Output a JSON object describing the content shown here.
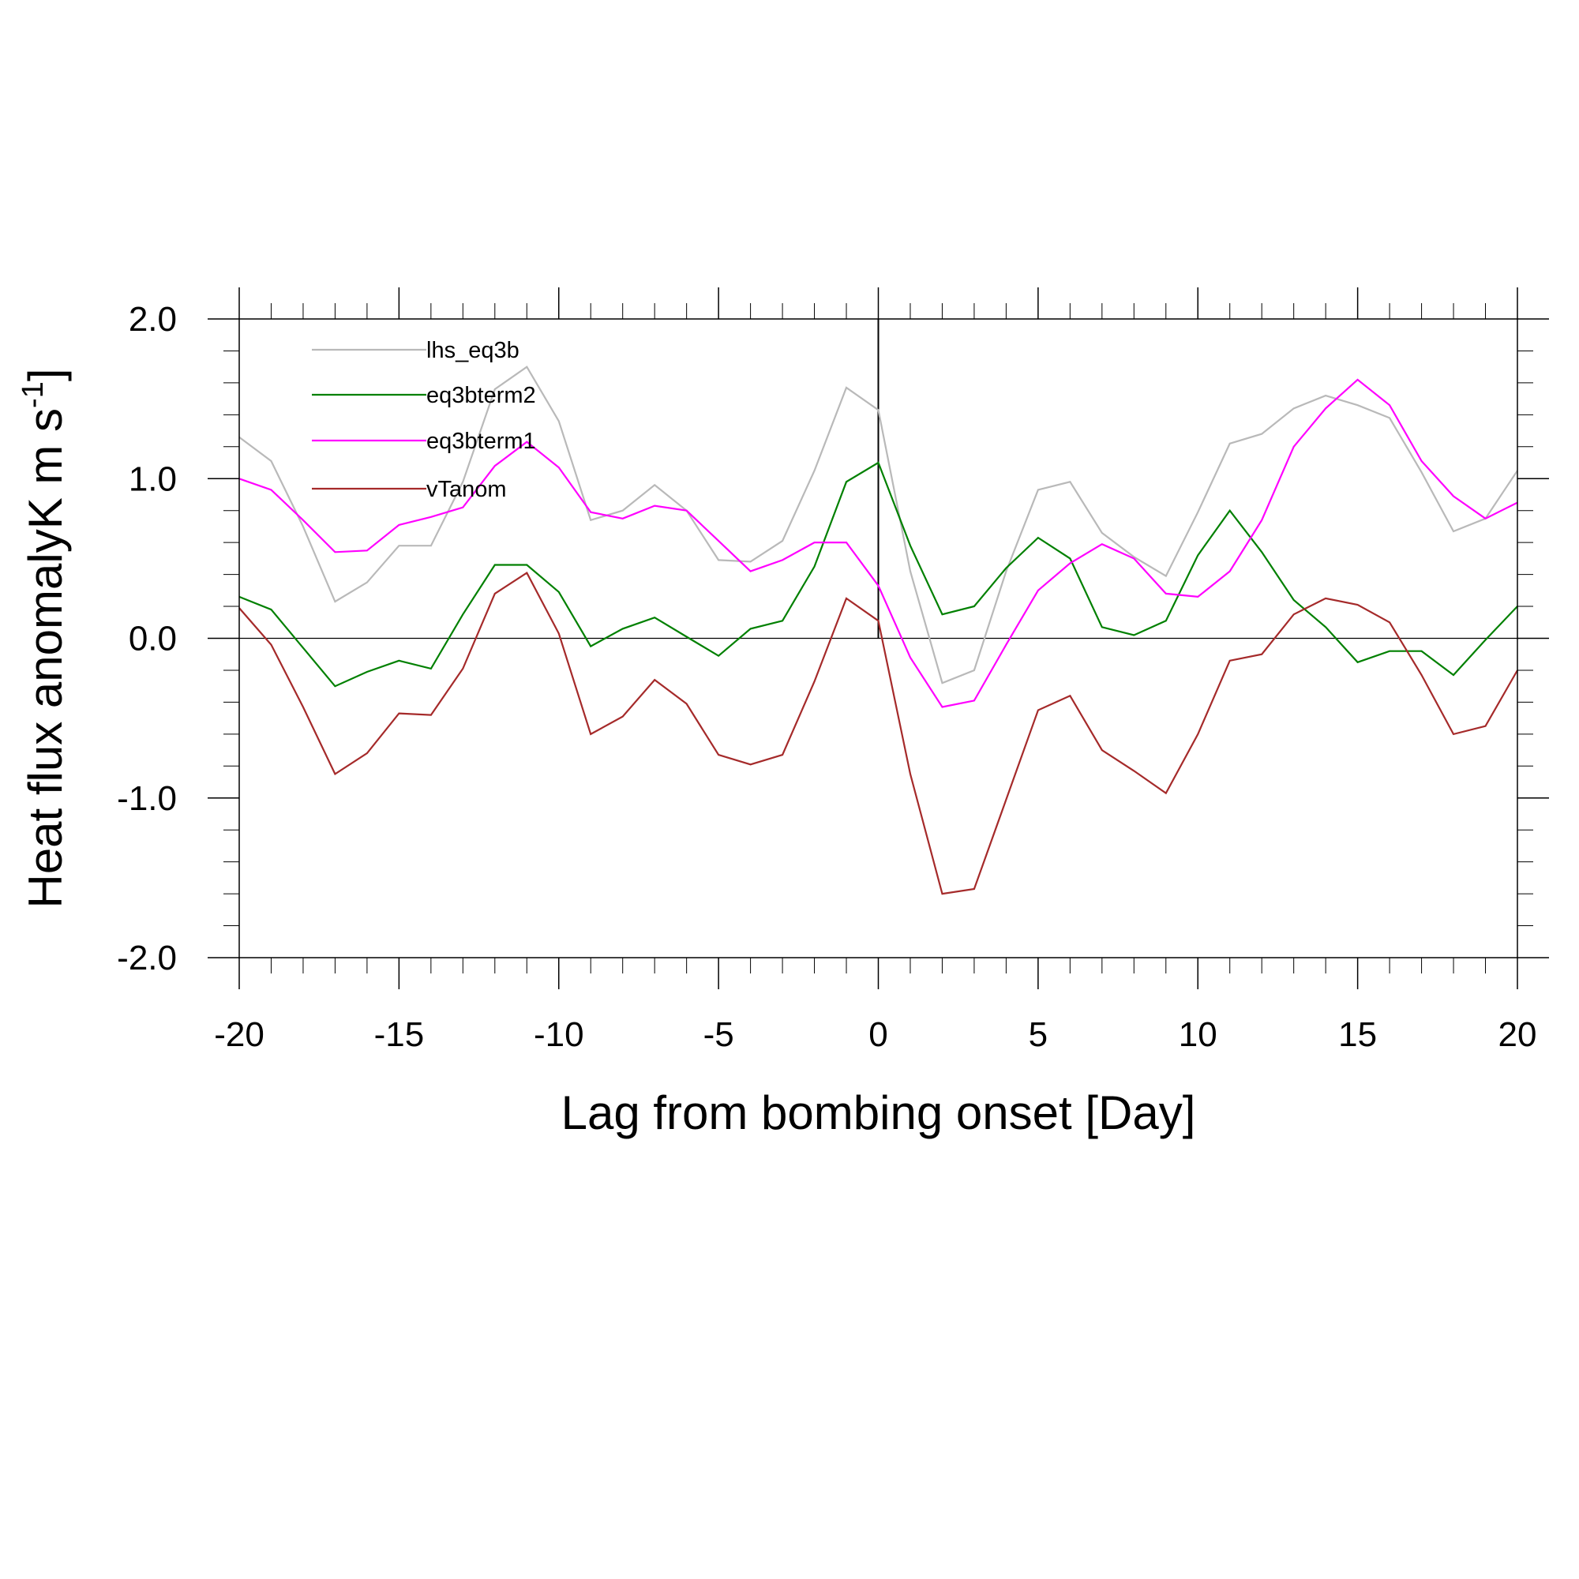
{
  "chart_data": {
    "type": "line",
    "title": "",
    "xlabel": "Lag from bombing onset [Day]",
    "ylabel": "Heat flux anomalyK m s",
    "ylabel_superscript": "-1",
    "ylabel_close": "]",
    "xlim": [
      -20,
      20
    ],
    "ylim": [
      -2,
      2
    ],
    "x_ticks": [
      -20,
      -15,
      -10,
      -5,
      0,
      5,
      10,
      15,
      20
    ],
    "x_tick_labels": [
      "-20",
      "-15",
      "-10",
      "-5",
      "0",
      "5",
      "10",
      "15",
      "20"
    ],
    "y_ticks": [
      -2,
      -1,
      0,
      1,
      2
    ],
    "y_tick_labels": [
      "-2.0",
      "-1.0",
      "0.0",
      "1.0",
      "2.0"
    ],
    "reference_lines": {
      "x": 0,
      "y": 0
    },
    "grid": false,
    "legend_position": "top-left",
    "x": [
      -20,
      -19,
      -18,
      -17,
      -16,
      -15,
      -14,
      -13,
      -12,
      -11,
      -10,
      -9,
      -8,
      -7,
      -6,
      -5,
      -4,
      -3,
      -2,
      -1,
      0,
      1,
      2,
      3,
      4,
      5,
      6,
      7,
      8,
      9,
      10,
      11,
      12,
      13,
      14,
      15,
      16,
      17,
      18,
      19,
      20
    ],
    "series": [
      {
        "name": "lhs_eq3b",
        "color": "#b9b9b9",
        "values": [
          1.26,
          1.11,
          0.7,
          0.23,
          0.35,
          0.58,
          0.58,
          0.98,
          1.56,
          1.7,
          1.36,
          0.74,
          0.8,
          0.96,
          0.8,
          0.49,
          0.48,
          0.61,
          1.05,
          1.57,
          1.43,
          0.42,
          -0.28,
          -0.2,
          0.42,
          0.93,
          0.98,
          0.66,
          0.51,
          0.39,
          0.79,
          1.22,
          1.28,
          1.44,
          1.52,
          1.46,
          1.38,
          1.04,
          0.67,
          0.75,
          1.05
        ]
      },
      {
        "name": "eq3bterm2",
        "color": "#008000",
        "values": [
          0.26,
          0.18,
          -0.06,
          -0.3,
          -0.21,
          -0.14,
          -0.19,
          0.15,
          0.46,
          0.46,
          0.29,
          -0.05,
          0.06,
          0.13,
          0.01,
          -0.11,
          0.06,
          0.11,
          0.45,
          0.98,
          1.1,
          0.58,
          0.15,
          0.2,
          0.44,
          0.63,
          0.5,
          0.07,
          0.02,
          0.11,
          0.52,
          0.8,
          0.54,
          0.24,
          0.07,
          -0.15,
          -0.08,
          -0.08,
          -0.23,
          -0.01,
          0.2
        ]
      },
      {
        "name": "eq3bterm1",
        "color": "#ff00ff",
        "values": [
          1.0,
          0.93,
          0.74,
          0.54,
          0.55,
          0.71,
          0.76,
          0.82,
          1.08,
          1.23,
          1.07,
          0.79,
          0.75,
          0.83,
          0.8,
          0.61,
          0.42,
          0.49,
          0.6,
          0.6,
          0.33,
          -0.12,
          -0.43,
          -0.39,
          -0.04,
          0.3,
          0.47,
          0.59,
          0.5,
          0.28,
          0.26,
          0.42,
          0.74,
          1.2,
          1.44,
          1.62,
          1.46,
          1.11,
          0.89,
          0.75,
          0.85
        ]
      },
      {
        "name": "vTanom",
        "color": "#a52a2a",
        "values": [
          0.19,
          -0.04,
          -0.43,
          -0.85,
          -0.72,
          -0.47,
          -0.48,
          -0.19,
          0.28,
          0.41,
          0.03,
          -0.6,
          -0.49,
          -0.26,
          -0.41,
          -0.73,
          -0.79,
          -0.73,
          -0.27,
          0.25,
          0.11,
          -0.85,
          -1.6,
          -1.57,
          -1.01,
          -0.45,
          -0.36,
          -0.7,
          -0.83,
          -0.97,
          -0.6,
          -0.14,
          -0.1,
          0.15,
          0.25,
          0.21,
          0.1,
          -0.23,
          -0.6,
          -0.55,
          -0.2
        ]
      }
    ]
  }
}
